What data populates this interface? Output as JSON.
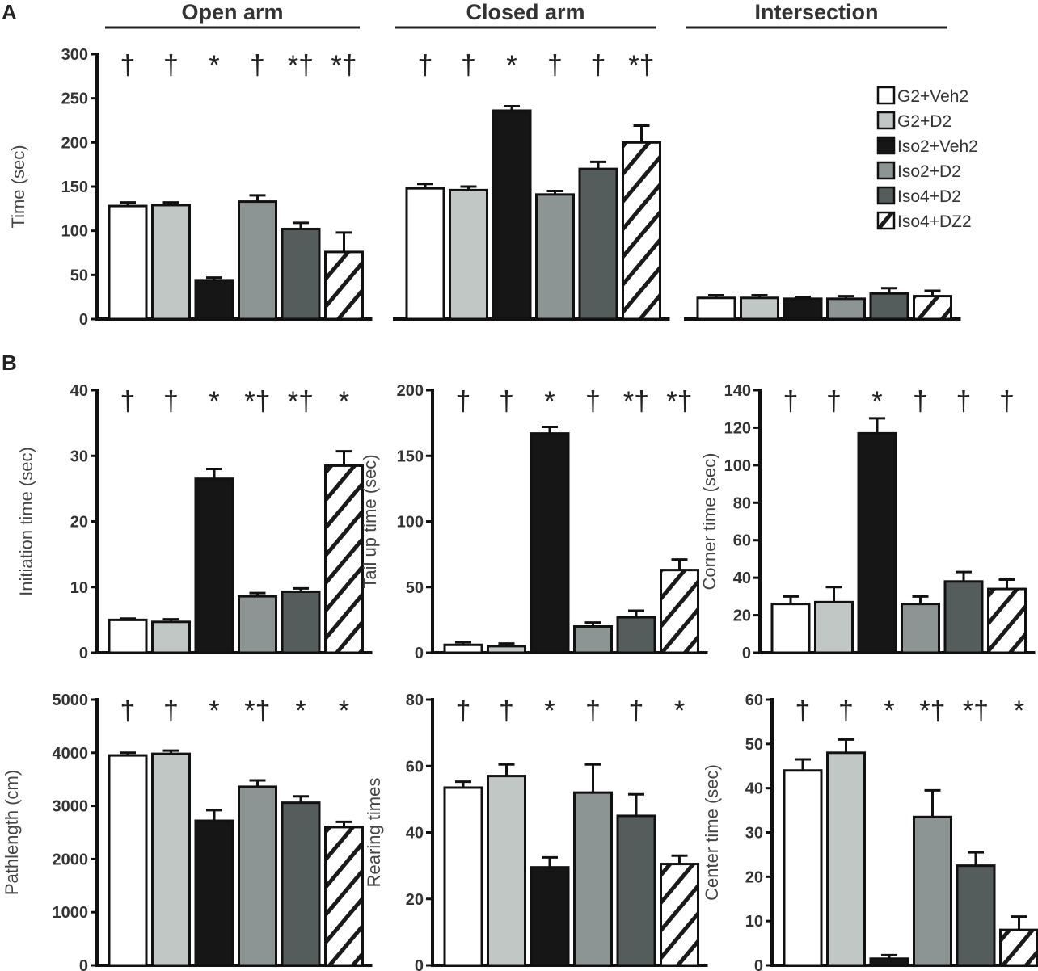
{
  "panel_labels": [
    "A",
    "B"
  ],
  "colors": {
    "G2+Veh2": "#ffffff",
    "G2+D2": "#c1c7c5",
    "Iso2+Veh2": "#161616",
    "Iso2+D2": "#8c9593",
    "Iso4+D2": "#555c5c",
    "Iso4+DZ2": "hatch"
  },
  "legend": [
    "G2+Veh2",
    "G2+D2",
    "Iso2+Veh2",
    "Iso2+D2",
    "Iso4+D2",
    "Iso4+DZ2"
  ],
  "chart_data": [
    {
      "type": "bar",
      "title": "Open arm",
      "ylabel": "Time (sec)",
      "ylim": [
        0,
        300
      ],
      "yticks": [
        0,
        50,
        100,
        150,
        200,
        250,
        300
      ],
      "categories": [
        "G2+Veh2",
        "G2+D2",
        "Iso2+Veh2",
        "Iso2+D2",
        "Iso4+D2",
        "Iso4+DZ2"
      ],
      "values": [
        128,
        129,
        44,
        133,
        102,
        76
      ],
      "errors": [
        4,
        3,
        3,
        7,
        7,
        22
      ],
      "annotations": [
        "†",
        "†",
        "*",
        "†",
        "*†",
        "*†"
      ]
    },
    {
      "type": "bar",
      "title": "Closed arm",
      "ylabel": "",
      "ylim": [
        0,
        300
      ],
      "yticks": [],
      "categories": [
        "G2+Veh2",
        "G2+D2",
        "Iso2+Veh2",
        "Iso2+D2",
        "Iso4+D2",
        "Iso4+DZ2"
      ],
      "values": [
        148,
        146,
        236,
        141,
        170,
        200
      ],
      "errors": [
        5,
        4,
        5,
        4,
        8,
        19
      ],
      "annotations": [
        "†",
        "†",
        "*",
        "†",
        "†",
        "*†"
      ]
    },
    {
      "type": "bar",
      "title": "Intersection",
      "ylabel": "",
      "ylim": [
        0,
        300
      ],
      "yticks": [],
      "categories": [
        "G2+Veh2",
        "G2+D2",
        "Iso2+Veh2",
        "Iso2+D2",
        "Iso4+D2",
        "Iso4+DZ2"
      ],
      "values": [
        24,
        24,
        23,
        23,
        29,
        26
      ],
      "errors": [
        3,
        3,
        2,
        3,
        6,
        6
      ],
      "annotations": [
        "",
        "",
        "",
        "",
        "",
        ""
      ]
    },
    {
      "type": "bar",
      "title": "",
      "ylabel": "Initiation time (sec)",
      "ylim": [
        0,
        40
      ],
      "yticks": [
        0,
        10,
        20,
        30,
        40
      ],
      "categories": [
        "G2+Veh2",
        "G2+D2",
        "Iso2+Veh2",
        "Iso2+D2",
        "Iso4+D2",
        "Iso4+DZ2"
      ],
      "values": [
        5,
        4.7,
        26.5,
        8.6,
        9.3,
        28.5
      ],
      "errors": [
        0.2,
        0.4,
        1.5,
        0.5,
        0.5,
        2.2
      ],
      "annotations": [
        "†",
        "†",
        "*",
        "*†",
        "*†",
        "*"
      ]
    },
    {
      "type": "bar",
      "title": "",
      "ylabel": "Tail up time (sec)",
      "ylim": [
        0,
        200
      ],
      "yticks": [
        0,
        50,
        100,
        150,
        200
      ],
      "categories": [
        "G2+Veh2",
        "G2+D2",
        "Iso2+Veh2",
        "Iso2+D2",
        "Iso4+D2",
        "Iso4+DZ2"
      ],
      "values": [
        6,
        5,
        167,
        20,
        27,
        63
      ],
      "errors": [
        2,
        2,
        5,
        3,
        5,
        8
      ],
      "annotations": [
        "†",
        "†",
        "*",
        "†",
        "*†",
        "*†"
      ]
    },
    {
      "type": "bar",
      "title": "",
      "ylabel": "Corner time (sec)",
      "ylim": [
        0,
        140
      ],
      "yticks": [
        0,
        20,
        40,
        60,
        80,
        100,
        120,
        140
      ],
      "categories": [
        "G2+Veh2",
        "G2+D2",
        "Iso2+Veh2",
        "Iso2+D2",
        "Iso4+D2",
        "Iso4+DZ2"
      ],
      "values": [
        26,
        27,
        117,
        26,
        38,
        34
      ],
      "errors": [
        4,
        8,
        8,
        4,
        5,
        5
      ],
      "annotations": [
        "†",
        "†",
        "*",
        "†",
        "†",
        "†"
      ]
    },
    {
      "type": "bar",
      "title": "",
      "ylabel": "Pathlength (cm)",
      "ylim": [
        0,
        5000
      ],
      "yticks": [
        0,
        1000,
        2000,
        3000,
        4000,
        5000
      ],
      "categories": [
        "G2+Veh2",
        "G2+D2",
        "Iso2+Veh2",
        "Iso2+D2",
        "Iso4+D2",
        "Iso4+DZ2"
      ],
      "values": [
        3950,
        3980,
        2720,
        3360,
        3060,
        2600
      ],
      "errors": [
        50,
        60,
        200,
        120,
        120,
        100
      ],
      "annotations": [
        "†",
        "†",
        "*",
        "*†",
        "*",
        "*"
      ]
    },
    {
      "type": "bar",
      "title": "",
      "ylabel": "Rearing times",
      "ylim": [
        0,
        80
      ],
      "yticks": [
        0,
        20,
        40,
        60,
        80
      ],
      "categories": [
        "G2+Veh2",
        "G2+D2",
        "Iso2+Veh2",
        "Iso2+D2",
        "Iso4+D2",
        "Iso4+DZ2"
      ],
      "values": [
        53.5,
        57,
        29.5,
        52,
        45,
        30.5
      ],
      "errors": [
        1.8,
        3.5,
        3.0,
        8.5,
        6.5,
        2.5
      ],
      "annotations": [
        "†",
        "†",
        "*",
        "†",
        "†",
        "*"
      ]
    },
    {
      "type": "bar",
      "title": "",
      "ylabel": "Center time (sec)",
      "ylim": [
        0,
        60
      ],
      "yticks": [
        0,
        10,
        20,
        30,
        40,
        50,
        60
      ],
      "categories": [
        "G2+Veh2",
        "G2+D2",
        "Iso2+Veh2",
        "Iso2+D2",
        "Iso4+D2",
        "Iso4+DZ2"
      ],
      "values": [
        44,
        48,
        1.5,
        33.5,
        22.5,
        8
      ],
      "errors": [
        2.5,
        3,
        0.8,
        6,
        3,
        3
      ],
      "annotations": [
        "†",
        "†",
        "*",
        "*†",
        "*†",
        "*"
      ]
    }
  ]
}
